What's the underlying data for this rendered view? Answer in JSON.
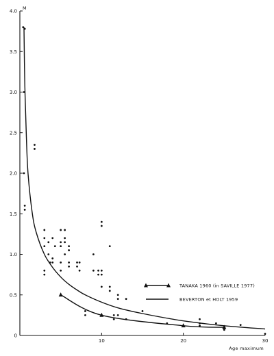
{
  "chart_data": {
    "type": "scatter",
    "title": "",
    "xlabel": "Age maximum",
    "ylabel": "M",
    "xlim": [
      0,
      30
    ],
    "ylim": [
      0,
      4.0
    ],
    "x_ticks": [
      10,
      20,
      30
    ],
    "x_tick_labels": [
      "10",
      "20",
      "30"
    ],
    "y_ticks": [
      0,
      0.5,
      1.0,
      1.5,
      2.0,
      2.5,
      3.0,
      3.5,
      4.0
    ],
    "y_tick_labels": [
      "0",
      "0.5",
      "1.0",
      "1.5",
      "2.0",
      "2.5",
      "3.0",
      "3.5",
      "4.0"
    ],
    "grid": false,
    "legend_position": "right",
    "points": [
      {
        "x": 0.4,
        "y": 3.8
      },
      {
        "x": 0.6,
        "y": 3.78
      },
      {
        "x": 0.5,
        "y": 3.0
      },
      {
        "x": 0.5,
        "y": 2.0
      },
      {
        "x": 0.6,
        "y": 1.6
      },
      {
        "x": 0.6,
        "y": 1.55
      },
      {
        "x": 1.8,
        "y": 2.35
      },
      {
        "x": 1.8,
        "y": 2.3
      },
      {
        "x": 3.0,
        "y": 1.3
      },
      {
        "x": 3.0,
        "y": 1.2
      },
      {
        "x": 3.0,
        "y": 1.1
      },
      {
        "x": 3.0,
        "y": 0.8
      },
      {
        "x": 3.0,
        "y": 0.75
      },
      {
        "x": 3.5,
        "y": 1.15
      },
      {
        "x": 3.5,
        "y": 1.0
      },
      {
        "x": 3.7,
        "y": 0.9
      },
      {
        "x": 4.0,
        "y": 1.2
      },
      {
        "x": 4.0,
        "y": 0.95
      },
      {
        "x": 4.0,
        "y": 0.9
      },
      {
        "x": 4.3,
        "y": 1.1
      },
      {
        "x": 5.0,
        "y": 1.3
      },
      {
        "x": 5.0,
        "y": 1.15
      },
      {
        "x": 5.0,
        "y": 1.1
      },
      {
        "x": 5.0,
        "y": 0.9
      },
      {
        "x": 5.0,
        "y": 0.8
      },
      {
        "x": 5.5,
        "y": 1.3
      },
      {
        "x": 5.5,
        "y": 1.2
      },
      {
        "x": 5.5,
        "y": 1.15
      },
      {
        "x": 5.5,
        "y": 1.0
      },
      {
        "x": 6.0,
        "y": 1.1
      },
      {
        "x": 6.0,
        "y": 1.05
      },
      {
        "x": 6.0,
        "y": 0.9
      },
      {
        "x": 6.0,
        "y": 0.85
      },
      {
        "x": 7.0,
        "y": 0.9
      },
      {
        "x": 7.0,
        "y": 0.85
      },
      {
        "x": 7.3,
        "y": 0.9
      },
      {
        "x": 7.3,
        "y": 0.8
      },
      {
        "x": 8.0,
        "y": 0.3
      },
      {
        "x": 8.0,
        "y": 0.25
      },
      {
        "x": 9.0,
        "y": 1.0
      },
      {
        "x": 9.0,
        "y": 0.8
      },
      {
        "x": 9.6,
        "y": 0.8
      },
      {
        "x": 9.6,
        "y": 0.75
      },
      {
        "x": 10.0,
        "y": 1.4
      },
      {
        "x": 10.0,
        "y": 1.35
      },
      {
        "x": 10.0,
        "y": 0.8
      },
      {
        "x": 10.0,
        "y": 0.75
      },
      {
        "x": 10.0,
        "y": 0.6
      },
      {
        "x": 11.0,
        "y": 1.1
      },
      {
        "x": 11.0,
        "y": 0.6
      },
      {
        "x": 11.0,
        "y": 0.55
      },
      {
        "x": 11.5,
        "y": 0.25
      },
      {
        "x": 11.5,
        "y": 0.2
      },
      {
        "x": 12.0,
        "y": 0.5
      },
      {
        "x": 12.0,
        "y": 0.45
      },
      {
        "x": 12.0,
        "y": 0.25
      },
      {
        "x": 13.0,
        "y": 0.45
      },
      {
        "x": 13.0,
        "y": 0.2
      },
      {
        "x": 15.0,
        "y": 0.3
      },
      {
        "x": 18.0,
        "y": 0.15
      },
      {
        "x": 22.0,
        "y": 0.2
      },
      {
        "x": 22.0,
        "y": 0.15
      },
      {
        "x": 22.0,
        "y": 0.12
      },
      {
        "x": 24.0,
        "y": 0.15
      },
      {
        "x": 25.0,
        "y": 0.1
      },
      {
        "x": 25.0,
        "y": 0.07
      },
      {
        "x": 27.0,
        "y": 0.13
      },
      {
        "x": 30.0,
        "y": 0.02
      }
    ],
    "series": [
      {
        "name": "TANAKA 1960 (in SAVILLE 1977)",
        "style": "line-with-triangles",
        "x": [
          5,
          10,
          20,
          25
        ],
        "y": [
          0.5,
          0.25,
          0.12,
          0.1
        ]
      },
      {
        "name": "BEVERTON et HOLT 1959",
        "style": "line",
        "x": [
          0.5,
          0.6,
          0.8,
          1.0,
          1.5,
          2,
          3,
          4,
          5,
          6,
          7,
          8,
          10,
          12,
          15,
          20,
          25,
          30
        ],
        "y": [
          3.8,
          3.1,
          2.45,
          2.0,
          1.52,
          1.27,
          1.0,
          0.84,
          0.72,
          0.63,
          0.56,
          0.5,
          0.41,
          0.34,
          0.27,
          0.18,
          0.12,
          0.08
        ]
      }
    ]
  }
}
